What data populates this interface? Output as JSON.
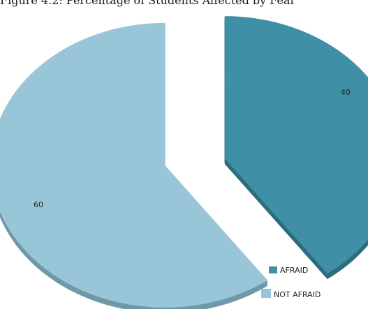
{
  "caption_fragment": "Figure 4.2: Percentage of Students Affected by Fear",
  "chart_data": {
    "type": "pie",
    "categories": [
      "AFRAID",
      "NOT AFRAID"
    ],
    "values": [
      40,
      60
    ],
    "data_labels": [
      "40",
      "60"
    ],
    "colors": [
      "#3f8fa6",
      "#98c6d8"
    ],
    "shadow_colors": [
      "#2e6c7e",
      "#6f98a8"
    ],
    "exploded": true,
    "three_d": true,
    "legend_position": "bottom-right",
    "title": "",
    "xlabel": "",
    "ylabel": ""
  }
}
